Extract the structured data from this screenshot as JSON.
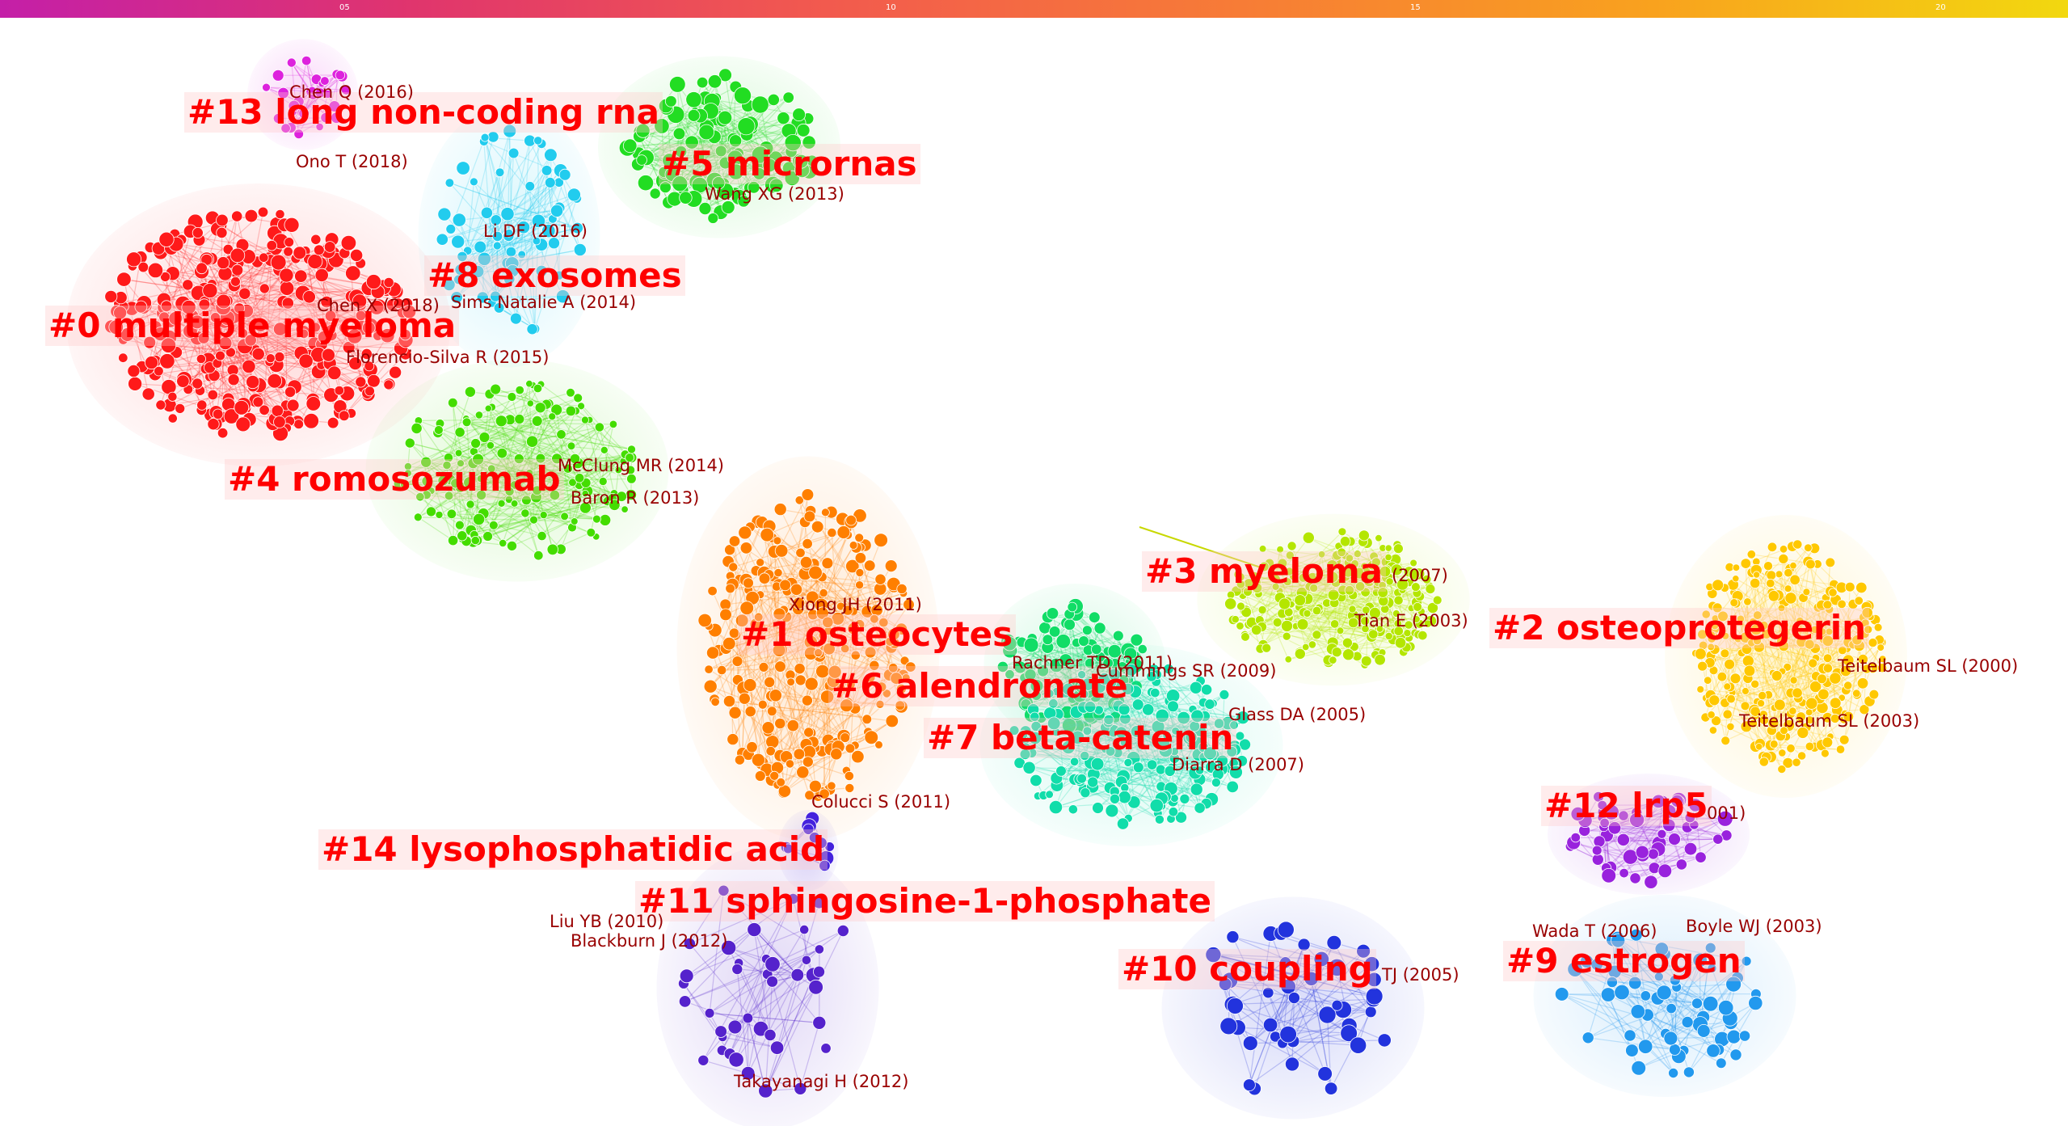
{
  "timeline": {
    "ticks": [
      "05",
      "10",
      "15",
      "20"
    ]
  },
  "clusters": [
    {
      "id": "c0",
      "label": "#0 multiple myeloma",
      "color": "#ff1a1a"
    },
    {
      "id": "c1",
      "label": "#1 osteocytes",
      "color": "#ff7f00"
    },
    {
      "id": "c2",
      "label": "#2 osteoprotegerin",
      "color": "#ffc800"
    },
    {
      "id": "c3",
      "label": "#3 myeloma",
      "color": "#b4e600"
    },
    {
      "id": "c4",
      "label": "#4 romosozumab",
      "color": "#44dd00"
    },
    {
      "id": "c5",
      "label": "#5 micrornas",
      "color": "#22dd22"
    },
    {
      "id": "c6",
      "label": "#6 alendronate",
      "color": "#11dd66"
    },
    {
      "id": "c7",
      "label": "#7 beta-catenin",
      "color": "#11ddaa"
    },
    {
      "id": "c8",
      "label": "#8 exosomes",
      "color": "#22ccee"
    },
    {
      "id": "c9",
      "label": "#9 estrogen",
      "color": "#2299ee"
    },
    {
      "id": "c10",
      "label": "#10 coupling",
      "color": "#2233dd"
    },
    {
      "id": "c11",
      "label": "#11 sphingosine-1-phosphate",
      "color": "#5522cc"
    },
    {
      "id": "c12",
      "label": "#12 lrp5",
      "color": "#9922dd"
    },
    {
      "id": "c13",
      "label": "#13 long non-coding rna",
      "color": "#dd22dd"
    },
    {
      "id": "c14",
      "label": "#14 lysophosphatidic acid",
      "color": "#4422dd"
    }
  ],
  "references": [
    {
      "id": "r1",
      "text": "Chen Q (2016)"
    },
    {
      "id": "r2",
      "text": "Ono T (2018)"
    },
    {
      "id": "r3",
      "text": "Wang XG (2013)"
    },
    {
      "id": "r4",
      "text": "Li DF (2016)"
    },
    {
      "id": "r5",
      "text": "Chen X (2018)"
    },
    {
      "id": "r6",
      "text": "Sims Natalie A (2014)"
    },
    {
      "id": "r7",
      "text": "Florencio-Silva R (2015)"
    },
    {
      "id": "r8",
      "text": "McClung MR (2014)"
    },
    {
      "id": "r9",
      "text": "Baron R (2013)"
    },
    {
      "id": "r10",
      "text": "Xiong JH (2011)"
    },
    {
      "id": "r11",
      "text": "(2007)"
    },
    {
      "id": "r12",
      "text": "Tian E (2003)"
    },
    {
      "id": "r13",
      "text": "Cummings SR (2009)"
    },
    {
      "id": "r14",
      "text": "Teitelbaum SL (2000)"
    },
    {
      "id": "r15",
      "text": "Teitelbaum SL (2003)"
    },
    {
      "id": "r16",
      "text": "Glass DA (2005)"
    },
    {
      "id": "r17",
      "text": "Diarra D (2007)"
    },
    {
      "id": "r18",
      "text": "Colucci S (2011)"
    },
    {
      "id": "r19",
      "text": "Liu YB (2010)"
    },
    {
      "id": "r20",
      "text": "Blackburn J (2012)"
    },
    {
      "id": "r21",
      "text": "Takayanagi H (2012)"
    },
    {
      "id": "r22",
      "text": "TJ (2005)"
    },
    {
      "id": "r23",
      "text": "Wada T (2006)"
    },
    {
      "id": "r24",
      "text": "Boyle WJ (2003)"
    },
    {
      "id": "r25",
      "text": "Rachner TD (2011)"
    },
    {
      "id": "r26",
      "text": "001)"
    }
  ]
}
